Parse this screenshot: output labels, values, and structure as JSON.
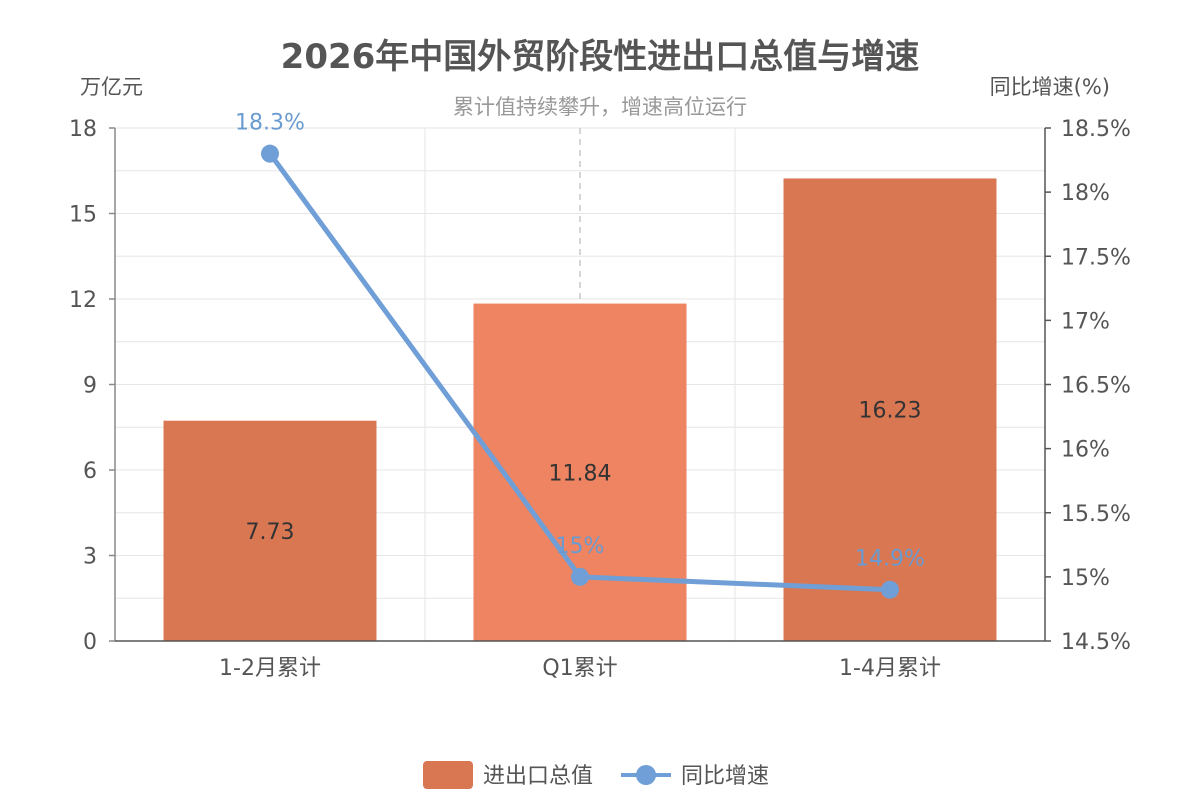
{
  "chart_data": {
    "type": "bar",
    "title": "2026年中国外贸阶段性进出口总值与增速",
    "subtitle": "累计值持续攀升，增速高位运行",
    "categories": [
      "1-2月累计",
      "Q1累计",
      "1-4月累计"
    ],
    "y_left": {
      "label": "万亿元",
      "range": [
        0,
        18
      ],
      "ticks": [
        "0",
        "3",
        "6",
        "9",
        "12",
        "15",
        "18"
      ]
    },
    "y_right": {
      "label": "同比增速(%)",
      "range": [
        14.5,
        18.5
      ],
      "ticks": [
        "14.5%",
        "15%",
        "15.5%",
        "16%",
        "16.5%",
        "17%",
        "17.5%",
        "18%",
        "18.5%"
      ]
    },
    "series": [
      {
        "name": "进出口总值",
        "type": "bar",
        "axis": "left",
        "values": [
          7.73,
          11.84,
          16.23
        ],
        "labels": [
          "7.73",
          "11.84",
          "16.23"
        ]
      },
      {
        "name": "同比增速",
        "type": "line",
        "axis": "right",
        "values": [
          18.3,
          15,
          14.9
        ],
        "labels": [
          "18.3%",
          "15%",
          "14.9%"
        ]
      }
    ],
    "colors": {
      "bar": "#d97753",
      "bar_highlight": "#ee8461",
      "line": "#6f9fd6",
      "line_label": "#6a9bd0",
      "grid": "#e6e6e6",
      "text": "#555555",
      "title": "#555555"
    },
    "grid": true,
    "legend_position": "bottom"
  }
}
